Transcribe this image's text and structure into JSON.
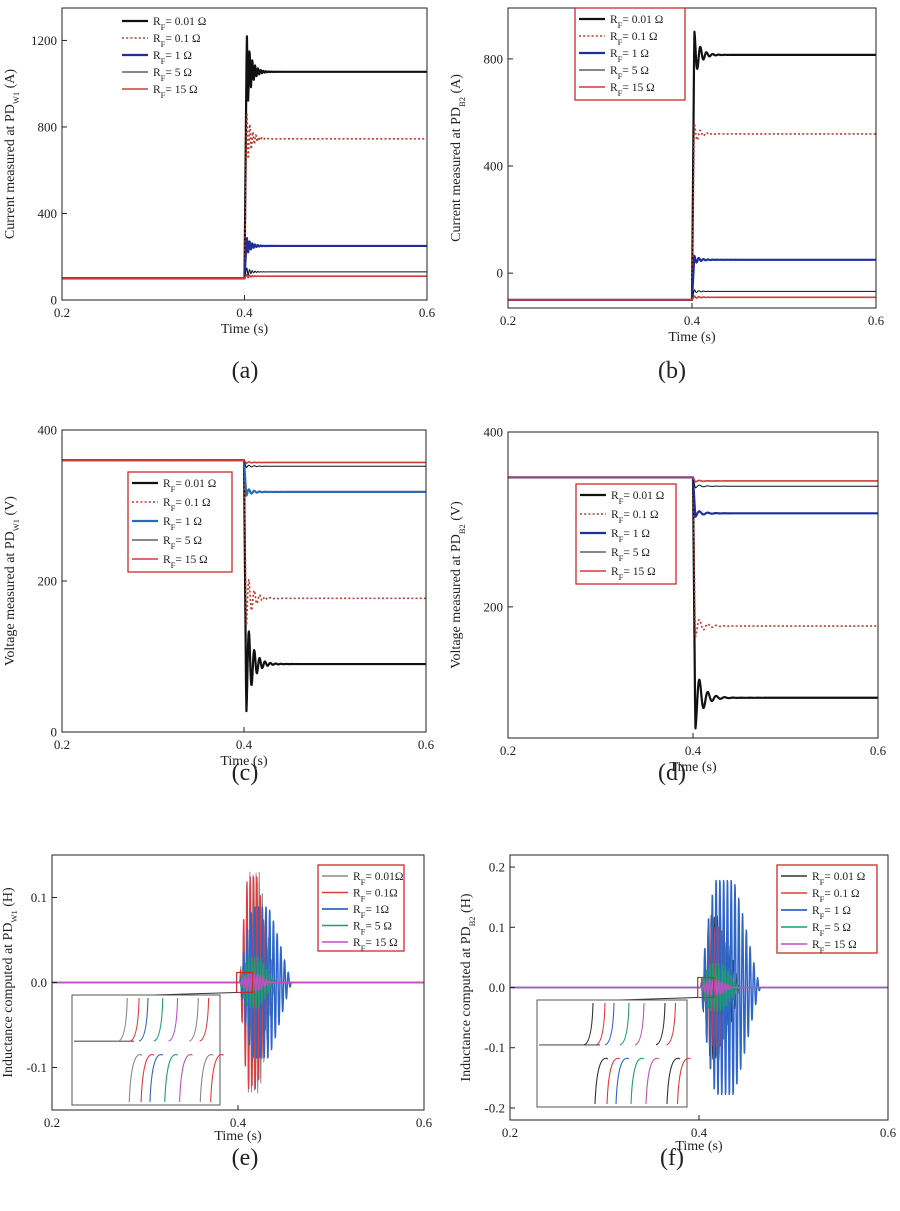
{
  "figure_caption_letters": [
    "(a)",
    "(b)",
    "(c)",
    "(d)",
    "(e)",
    "(f)"
  ],
  "chart_data": [
    {
      "id": "a",
      "type": "line",
      "caption": "(a)",
      "xlabel": "Time (s)",
      "ylabel_main": "Current measured at PD",
      "ylabel_sub": "W1",
      "ylabel_tail": " (A)",
      "xlim": [
        0.2,
        0.6
      ],
      "ylim": [
        0,
        1350
      ],
      "xticks": [
        "0.2",
        "0.4",
        "0.6"
      ],
      "yticks": [
        "0",
        "400",
        "800",
        "1200"
      ],
      "legend": {
        "framed": false,
        "entries": [
          {
            "pre": "R",
            "sub": "F",
            "post": "= 0.01 Ω",
            "color": "#111111",
            "dash": "solid",
            "width": 2.2
          },
          {
            "pre": "R",
            "sub": "F",
            "post": "= 0.1 Ω",
            "color": "#c0392b",
            "dash": "dot",
            "width": 1.6
          },
          {
            "pre": "R",
            "sub": "F",
            "post": "= 1 Ω",
            "color": "#1f2f9a",
            "dash": "solid",
            "width": 2.2
          },
          {
            "pre": "R",
            "sub": "F",
            "post": "= 5 Ω",
            "color": "#111111",
            "dash": "solid",
            "width": 1.0
          },
          {
            "pre": "R",
            "sub": "F",
            "post": "= 15 Ω",
            "color": "#d03a3a",
            "dash": "solid",
            "width": 1.6
          }
        ]
      },
      "series": [
        {
          "name": "RF=0.01",
          "color": "#111111",
          "dash": "solid",
          "width": 2.2,
          "pre": 100,
          "peak": 1235,
          "final": 1055,
          "osc_amp": 180,
          "osc_freq": 330,
          "tau": 0.005
        },
        {
          "name": "RF=0.1",
          "color": "#c0392b",
          "dash": "dot",
          "width": 1.6,
          "pre": 100,
          "peak": 875,
          "final": 745,
          "osc_amp": 130,
          "osc_freq": 300,
          "tau": 0.005
        },
        {
          "name": "RF=1",
          "color": "#1f2f9a",
          "dash": "solid",
          "width": 2.2,
          "pre": 100,
          "peak": 290,
          "final": 250,
          "osc_amp": 40,
          "osc_freq": 330,
          "tau": 0.005
        },
        {
          "name": "RF=5",
          "color": "#111111",
          "dash": "solid",
          "width": 1.0,
          "pre": 100,
          "peak": 150,
          "final": 130,
          "osc_amp": 18,
          "osc_freq": 330,
          "tau": 0.005
        },
        {
          "name": "RF=15",
          "color": "#d03a3a",
          "dash": "solid",
          "width": 1.6,
          "pre": 100,
          "peak": 118,
          "final": 110,
          "osc_amp": 6,
          "osc_freq": 330,
          "tau": 0.005
        }
      ]
    },
    {
      "id": "b",
      "type": "line",
      "caption": "(b)",
      "xlabel": "Time (s)",
      "ylabel_main": "Current measured at PD",
      "ylabel_sub": "B2",
      "ylabel_tail": " (A)",
      "xlim": [
        0.2,
        0.6
      ],
      "ylim": [
        -130,
        990
      ],
      "xticks": [
        "0.2",
        "0.4",
        "0.6"
      ],
      "yticks": [
        "0",
        "400",
        "800"
      ],
      "legend": {
        "framed": true,
        "entries": [
          {
            "pre": "R",
            "sub": "F",
            "post": "= 0.01 Ω",
            "color": "#111111",
            "dash": "solid",
            "width": 2.2
          },
          {
            "pre": "R",
            "sub": "F",
            "post": "= 0.1 Ω",
            "color": "#c0392b",
            "dash": "dot",
            "width": 1.6
          },
          {
            "pre": "R",
            "sub": "F",
            "post": "= 1 Ω",
            "color": "#1f2f9a",
            "dash": "solid",
            "width": 2.2
          },
          {
            "pre": "R",
            "sub": "F",
            "post": "= 5 Ω",
            "color": "#111111",
            "dash": "solid",
            "width": 1.0
          },
          {
            "pre": "R",
            "sub": "F",
            "post": "= 15 Ω",
            "color": "#d03a3a",
            "dash": "solid",
            "width": 1.6
          }
        ]
      },
      "series": [
        {
          "name": "RF=0.01",
          "color": "#111111",
          "dash": "solid",
          "width": 2.2,
          "pre": -100,
          "peak": 905,
          "final": 815,
          "osc_amp": 90,
          "osc_freq": 150,
          "tau": 0.006
        },
        {
          "name": "RF=0.1",
          "color": "#c0392b",
          "dash": "dot",
          "width": 1.6,
          "pre": -100,
          "peak": 560,
          "final": 520,
          "osc_amp": 40,
          "osc_freq": 150,
          "tau": 0.006
        },
        {
          "name": "RF=1",
          "color": "#1f2f9a",
          "dash": "solid",
          "width": 2.2,
          "pre": -100,
          "peak": 65,
          "final": 50,
          "osc_amp": 15,
          "osc_freq": 200,
          "tau": 0.006
        },
        {
          "name": "RF=5",
          "color": "#111111",
          "dash": "solid",
          "width": 1.0,
          "pre": -100,
          "peak": -62,
          "final": -68,
          "osc_amp": 6,
          "osc_freq": 200,
          "tau": 0.006
        },
        {
          "name": "RF=15",
          "color": "#d03a3a",
          "dash": "solid",
          "width": 1.6,
          "pre": -100,
          "peak": -85,
          "final": -90,
          "osc_amp": 4,
          "osc_freq": 200,
          "tau": 0.006
        }
      ]
    },
    {
      "id": "c",
      "type": "line",
      "caption": "(c)",
      "xlabel": "Time (s)",
      "ylabel_main": "Voltage measured at PD",
      "ylabel_sub": "W1",
      "ylabel_tail": " (V)",
      "xlim": [
        0.2,
        0.6
      ],
      "ylim": [
        0,
        400
      ],
      "xticks": [
        "0.2",
        "0.4",
        "0.6"
      ],
      "yticks": [
        "0",
        "200",
        "400"
      ],
      "legend": {
        "framed": true,
        "entries": [
          {
            "pre": "R",
            "sub": "F",
            "post": "= 0.01 Ω",
            "color": "#111111",
            "dash": "solid",
            "width": 2.2
          },
          {
            "pre": "R",
            "sub": "F",
            "post": "= 0.1 Ω",
            "color": "#c0392b",
            "dash": "dot",
            "width": 1.6
          },
          {
            "pre": "R",
            "sub": "F",
            "post": "= 1 Ω",
            "color": "#2b6cb0",
            "dash": "solid",
            "width": 2.2
          },
          {
            "pre": "R",
            "sub": "F",
            "post": "= 5 Ω",
            "color": "#111111",
            "dash": "solid",
            "width": 1.0
          },
          {
            "pre": "R",
            "sub": "F",
            "post": "= 15 Ω",
            "color": "#d03a3a",
            "dash": "solid",
            "width": 1.6
          }
        ]
      },
      "series": [
        {
          "name": "RF=0.01",
          "color": "#111111",
          "dash": "solid",
          "width": 2.2,
          "pre": 360,
          "peak": 25,
          "final": 90,
          "osc_amp": -65,
          "osc_freq": 170,
          "tau": 0.007
        },
        {
          "name": "RF=0.1",
          "color": "#c0392b",
          "dash": "dot",
          "width": 1.6,
          "pre": 360,
          "peak": 140,
          "final": 177,
          "osc_amp": -37,
          "osc_freq": 170,
          "tau": 0.007
        },
        {
          "name": "RF=1",
          "color": "#2b6cb0",
          "dash": "solid",
          "width": 2.2,
          "pre": 360,
          "peak": 313,
          "final": 318,
          "osc_amp": -5,
          "osc_freq": 170,
          "tau": 0.007
        },
        {
          "name": "RF=5",
          "color": "#111111",
          "dash": "solid",
          "width": 1.0,
          "pre": 360,
          "peak": 350,
          "final": 352,
          "osc_amp": -2,
          "osc_freq": 170,
          "tau": 0.007
        },
        {
          "name": "RF=15",
          "color": "#d03a3a",
          "dash": "solid",
          "width": 1.6,
          "pre": 360,
          "peak": 356,
          "final": 357,
          "osc_amp": -1,
          "osc_freq": 170,
          "tau": 0.007
        }
      ]
    },
    {
      "id": "d",
      "type": "line",
      "caption": "(d)",
      "xlabel": "Time (s)",
      "ylabel_main": "Voltage measured at PD",
      "ylabel_sub": "B2",
      "ylabel_tail": " (V)",
      "xlim": [
        0.2,
        0.6
      ],
      "ylim": [
        50,
        400
      ],
      "xticks": [
        "0.2",
        "0.4",
        "0.6"
      ],
      "yticks": [
        "200",
        "400"
      ],
      "legend": {
        "framed": true,
        "entries": [
          {
            "pre": "R",
            "sub": "F",
            "post": "= 0.01 Ω",
            "color": "#111111",
            "dash": "solid",
            "width": 2.2
          },
          {
            "pre": "R",
            "sub": "F",
            "post": "= 0.1 Ω",
            "color": "#c0392b",
            "dash": "dot",
            "width": 1.6
          },
          {
            "pre": "R",
            "sub": "F",
            "post": "= 1 Ω",
            "color": "#1f2f9a",
            "dash": "solid",
            "width": 2.2
          },
          {
            "pre": "R",
            "sub": "F",
            "post": "= 5 Ω",
            "color": "#111111",
            "dash": "solid",
            "width": 1.0
          },
          {
            "pre": "R",
            "sub": "F",
            "post": "= 15 Ω",
            "color": "#d03a3a",
            "dash": "solid",
            "width": 1.6
          }
        ]
      },
      "series": [
        {
          "name": "RF=0.01",
          "color": "#111111",
          "dash": "solid",
          "width": 2.2,
          "pre": 348,
          "peak": 60,
          "final": 96,
          "osc_amp": -36,
          "osc_freq": 110,
          "tau": 0.008
        },
        {
          "name": "RF=0.1",
          "color": "#c0392b",
          "dash": "dot",
          "width": 1.6,
          "pre": 348,
          "peak": 165,
          "final": 178,
          "osc_amp": -13,
          "osc_freq": 110,
          "tau": 0.008
        },
        {
          "name": "RF=1",
          "color": "#1f2f9a",
          "dash": "solid",
          "width": 2.2,
          "pre": 348,
          "peak": 303,
          "final": 307,
          "osc_amp": -4,
          "osc_freq": 110,
          "tau": 0.008
        },
        {
          "name": "RF=5",
          "color": "#111111",
          "dash": "solid",
          "width": 1.0,
          "pre": 348,
          "peak": 336,
          "final": 338,
          "osc_amp": -2,
          "osc_freq": 110,
          "tau": 0.008
        },
        {
          "name": "RF=15",
          "color": "#d03a3a",
          "dash": "solid",
          "width": 1.6,
          "pre": 348,
          "peak": 343,
          "final": 344,
          "osc_amp": -1,
          "osc_freq": 110,
          "tau": 0.008
        }
      ]
    },
    {
      "id": "e",
      "type": "line",
      "caption": "(e)",
      "xlabel": "Time (s)",
      "ylabel_main": "Inductance computed at PD",
      "ylabel_sub": "W1",
      "ylabel_tail": " (H)",
      "xlim": [
        0.2,
        0.6
      ],
      "ylim": [
        -0.15,
        0.15
      ],
      "xticks": [
        "0.2",
        "0.4",
        "0.6"
      ],
      "yticks": [
        "-0.1",
        "0.0",
        "0.1"
      ],
      "legend": {
        "framed": true,
        "entries": [
          {
            "pre": "R",
            "sub": "F",
            "post": "= 0.01Ω",
            "color": "#888888",
            "dash": "solid",
            "width": 1.4
          },
          {
            "pre": "R",
            "sub": "F",
            "post": "= 0.1Ω",
            "color": "#e03b3b",
            "dash": "solid",
            "width": 1.6
          },
          {
            "pre": "R",
            "sub": "F",
            "post": "= 1Ω",
            "color": "#2e66c8",
            "dash": "solid",
            "width": 1.8
          },
          {
            "pre": "R",
            "sub": "F",
            "post": "= 5 Ω",
            "color": "#1e9e6a",
            "dash": "solid",
            "width": 1.6
          },
          {
            "pre": "R",
            "sub": "F",
            "post": "= 15 Ω",
            "color": "#c050c0",
            "dash": "solid",
            "width": 1.6
          }
        ]
      },
      "series": [
        {
          "name": "RF=0.01",
          "color": "#888888",
          "dash": "solid",
          "width": 0.9,
          "amp": 0.13,
          "t_start": 0.402,
          "t_end": 0.455,
          "freq": 300
        },
        {
          "name": "RF=0.1",
          "color": "#e03b3b",
          "dash": "solid",
          "width": 1.3,
          "amp": 0.125,
          "t_start": 0.402,
          "t_end": 0.45,
          "freq": 280
        },
        {
          "name": "RF=1",
          "color": "#2e66c8",
          "dash": "solid",
          "width": 1.5,
          "amp": 0.09,
          "t_start": 0.402,
          "t_end": 0.48,
          "freq": 250
        },
        {
          "name": "RF=5",
          "color": "#1e9e6a",
          "dash": "solid",
          "width": 1.2,
          "amp": 0.03,
          "t_start": 0.402,
          "t_end": 0.455,
          "freq": 310
        },
        {
          "name": "RF=15",
          "color": "#c050c0",
          "dash": "solid",
          "width": 1.4,
          "amp": 0.01,
          "t_start": 0.402,
          "t_end": 0.45,
          "freq": 310
        }
      ],
      "inset": {
        "description": "zoom of onset region"
      }
    },
    {
      "id": "f",
      "type": "line",
      "caption": "(f)",
      "xlabel": "Time (s)",
      "ylabel_main": "Inductance computed at PD",
      "ylabel_sub": "B2",
      "ylabel_tail": " (H)",
      "xlim": [
        0.2,
        0.6
      ],
      "ylim": [
        -0.22,
        0.22
      ],
      "xticks": [
        "0.2",
        "0.4",
        "0.6"
      ],
      "yticks": [
        "-0.2",
        "-0.1",
        "0.0",
        "0.1",
        "0.2"
      ],
      "legend": {
        "framed": true,
        "entries": [
          {
            "pre": "R",
            "sub": "F",
            "post": "= 0.01 Ω",
            "color": "#333333",
            "dash": "solid",
            "width": 1.4
          },
          {
            "pre": "R",
            "sub": "F",
            "post": "= 0.1 Ω",
            "color": "#e03b3b",
            "dash": "solid",
            "width": 1.6
          },
          {
            "pre": "R",
            "sub": "F",
            "post": "= 1 Ω",
            "color": "#2e66c8",
            "dash": "solid",
            "width": 1.8
          },
          {
            "pre": "R",
            "sub": "F",
            "post": "= 5 Ω",
            "color": "#1e9e6a",
            "dash": "solid",
            "width": 1.6
          },
          {
            "pre": "R",
            "sub": "F",
            "post": "= 15 Ω",
            "color": "#c050c0",
            "dash": "solid",
            "width": 1.6
          }
        ]
      },
      "series": [
        {
          "name": "RF=0.01",
          "color": "#333333",
          "dash": "solid",
          "width": 0.9,
          "amp": 0.12,
          "t_start": 0.402,
          "t_end": 0.46,
          "freq": 300
        },
        {
          "name": "RF=0.1",
          "color": "#e03b3b",
          "dash": "solid",
          "width": 1.3,
          "amp": 0.1,
          "t_start": 0.402,
          "t_end": 0.455,
          "freq": 280
        },
        {
          "name": "RF=1",
          "color": "#2e66c8",
          "dash": "solid",
          "width": 1.5,
          "amp": 0.18,
          "t_start": 0.402,
          "t_end": 0.49,
          "freq": 250
        },
        {
          "name": "RF=5",
          "color": "#1e9e6a",
          "dash": "solid",
          "width": 1.2,
          "amp": 0.04,
          "t_start": 0.402,
          "t_end": 0.46,
          "freq": 310
        },
        {
          "name": "RF=15",
          "color": "#c050c0",
          "dash": "solid",
          "width": 1.4,
          "amp": 0.012,
          "t_start": 0.402,
          "t_end": 0.45,
          "freq": 310
        }
      ],
      "inset": {
        "description": "zoom of onset region"
      }
    }
  ]
}
